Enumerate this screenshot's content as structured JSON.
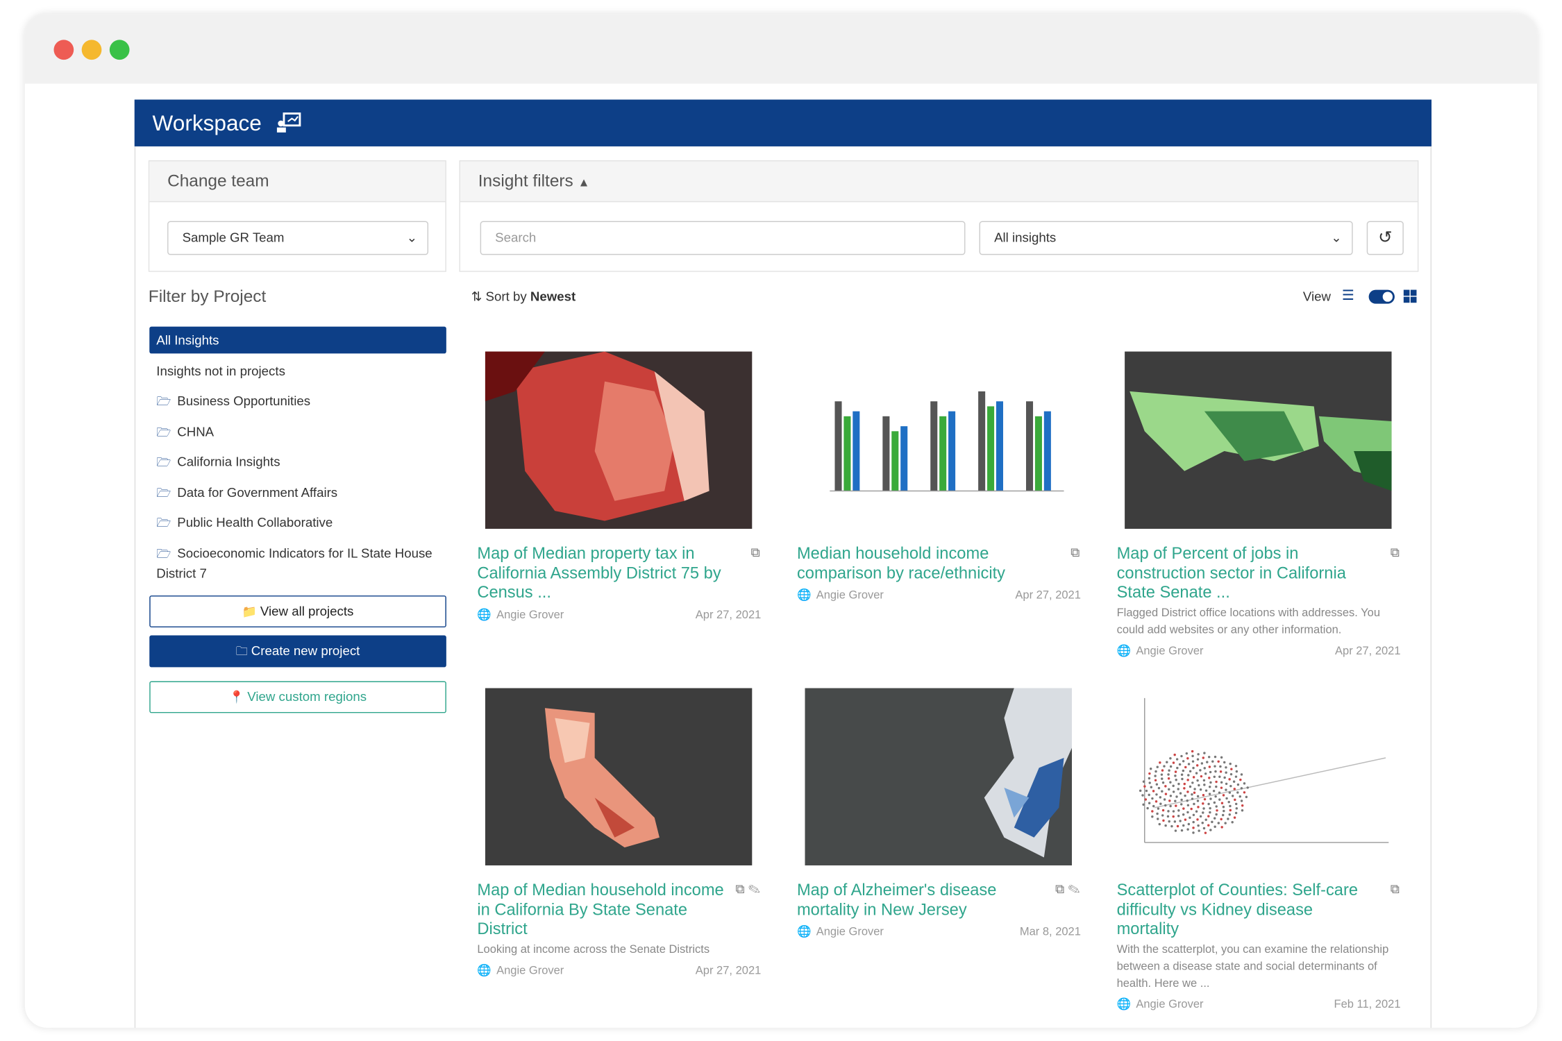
{
  "header": {
    "title": "Workspace"
  },
  "team_panel": {
    "title": "Change team",
    "selected": "Sample GR Team"
  },
  "filters": {
    "title": "Insight filters",
    "search_placeholder": "Search",
    "type_selected": "All insights"
  },
  "sidebar": {
    "title": "Filter by Project",
    "items": [
      "All Insights",
      "Insights not in projects",
      "Business Opportunities",
      "CHNA",
      "California Insights",
      "Data for Government Affairs",
      "Public Health Collaborative",
      "Socioeconomic Indicators for IL State House District 7"
    ],
    "buttons": [
      "View all projects",
      "Create new project",
      "View custom regions"
    ]
  },
  "toolbar": {
    "sort_label": "Sort by",
    "sort_value": "Newest",
    "view_label": "View"
  },
  "cards": [
    {
      "title": "Map of Median property tax in California Assembly District 75 by Census ...",
      "author": "Angie Grover",
      "date": "Apr 27, 2021"
    },
    {
      "title": "Median household income comparison by race/ethnicity",
      "author": "Angie Grover",
      "date": "Apr 27, 2021"
    },
    {
      "title": "Map of Percent of jobs in construction sector in California State Senate ...",
      "description": "Flagged District office locations with addresses. You could add websites or any other information.",
      "author": "Angie Grover",
      "date": "Apr 27, 2021"
    },
    {
      "title": "Map of Median household income in California By State Senate District",
      "description": "Looking at income across the Senate Districts",
      "author": "Angie Grover",
      "date": "Apr 27, 2021"
    },
    {
      "title": "Map of Alzheimer's disease mortality in New Jersey",
      "author": "Angie Grover",
      "date": "Mar 8, 2021"
    },
    {
      "title": "Scatterplot of Counties: Self-care difficulty vs Kidney disease mortality",
      "description": "With the scatterplot, you can examine the relationship between a disease state and social determinants of health. Here we ...",
      "author": "Angie Grover",
      "date": "Feb 11, 2021"
    }
  ]
}
